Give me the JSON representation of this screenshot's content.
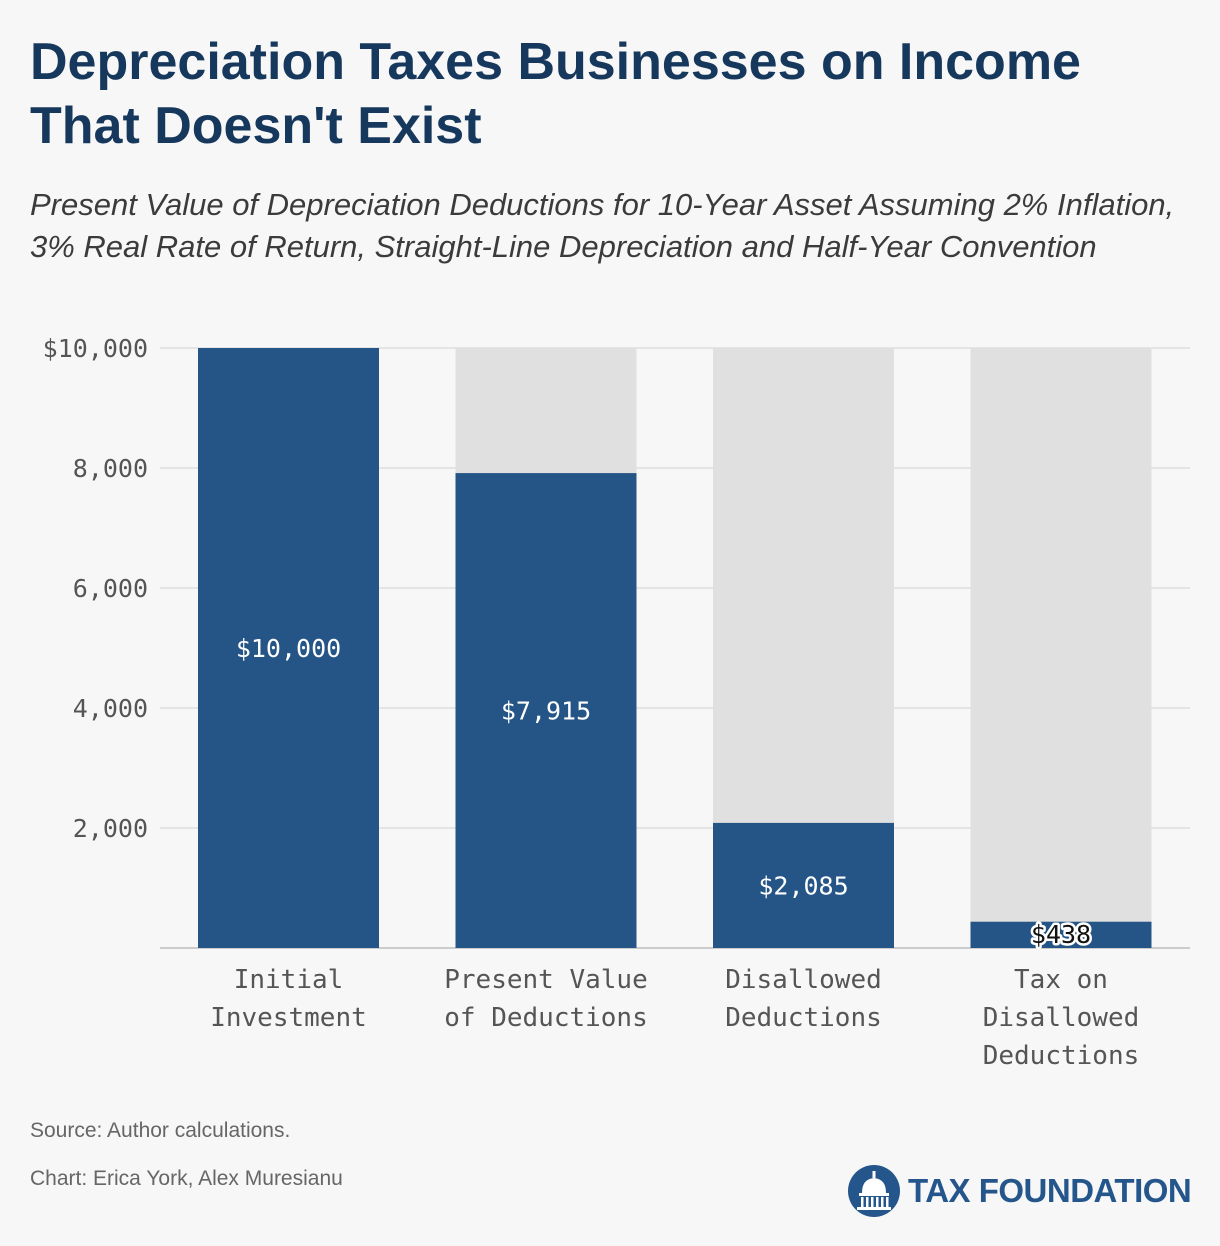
{
  "header": {
    "title": "Depreciation Taxes Businesses on Income That Doesn't Exist",
    "subtitle": "Present Value of Depreciation Deductions for 10-Year Asset Assuming 2% Inflation, 3% Real Rate of Return, Straight-Line Depreciation and Half-Year Convention"
  },
  "chart_data": {
    "type": "bar",
    "title": "Depreciation Taxes Businesses on Income That Doesn't Exist",
    "subtitle": "Present Value of Depreciation Deductions for 10-Year Asset Assuming 2% Inflation, 3% Real Rate of Return, Straight-Line Depreciation and Half-Year Convention",
    "categories": [
      [
        "Initial",
        "Investment"
      ],
      [
        "Present Value",
        "of Deductions"
      ],
      [
        "Disallowed",
        "Deductions"
      ],
      [
        "Tax on",
        "Disallowed",
        "Deductions"
      ]
    ],
    "values": [
      10000,
      7915,
      2085,
      438
    ],
    "data_labels": [
      "$10,000",
      "$7,915",
      "$2,085",
      "$438"
    ],
    "background_value": 10000,
    "ylim": [
      0,
      10000
    ],
    "yticks": [
      2000,
      4000,
      6000,
      8000,
      10000
    ],
    "ytick_labels": [
      "2,000",
      "4,000",
      "6,000",
      "8,000",
      "$10,000"
    ],
    "xlabel": "",
    "ylabel": "",
    "grid": true,
    "colors": {
      "bar": "#255587",
      "bar_background": "#e0e0e0",
      "gridline": "#dddddd",
      "label_light": "#ffffff",
      "label_dark": "#111111"
    }
  },
  "footer": {
    "source": "Source: Author calculations.",
    "credit": "Chart: Erica York, Alex Muresianu",
    "logo_text": "TAX FOUNDATION",
    "logo_icon": "capitol-dome-icon"
  }
}
